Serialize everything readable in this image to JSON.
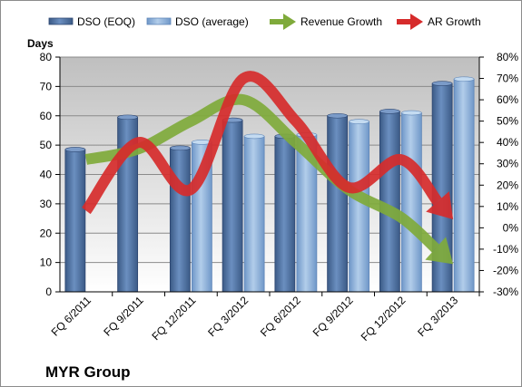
{
  "chart_data": {
    "type": "bar",
    "company": "MYR Group",
    "ylabel_left": "Days",
    "categories": [
      "FQ 6/2011",
      "FQ 9/2011",
      "FQ 12/2011",
      "FQ 3/2012",
      "FQ 6/2012",
      "FQ 9/2012",
      "FQ 12/2012",
      "FQ 3/2013"
    ],
    "ylim_left": [
      0,
      80
    ],
    "left_ticks": [
      "0",
      "10",
      "20",
      "30",
      "40",
      "50",
      "60",
      "70",
      "80"
    ],
    "ylim_right": [
      -30,
      80
    ],
    "right_ticks": [
      "-30%",
      "-20%",
      "-10%",
      "0%",
      "10%",
      "20%",
      "30%",
      "40%",
      "50%",
      "60%",
      "70%",
      "80%"
    ],
    "bar_series": [
      {
        "name": "DSO (EOQ)",
        "color": "#4f6f9c",
        "values": [
          48.5,
          59.5,
          49,
          58.5,
          53,
          60,
          61.5,
          71
        ]
      },
      {
        "name": "DSO (average)",
        "color": "#8fb4dc",
        "values": [
          null,
          null,
          51,
          53,
          53.5,
          58,
          61,
          72.5
        ]
      }
    ],
    "line_series": [
      {
        "name": "Revenue Growth",
        "color": "#7faa3b",
        "values": [
          32,
          37,
          50,
          60,
          40,
          18,
          5,
          -17
        ]
      },
      {
        "name": "AR Growth",
        "color": "#d62b2b",
        "values": [
          8,
          40,
          18,
          70,
          50,
          19,
          32,
          4
        ]
      }
    ],
    "grid": true,
    "legend_position": "top"
  }
}
